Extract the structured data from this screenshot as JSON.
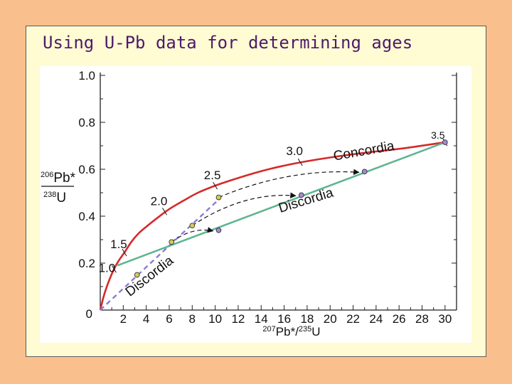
{
  "slide": {
    "title": "Using U-Pb data for determining ages"
  },
  "colors": {
    "background": "#f9c08e",
    "frame": "#fffbd3",
    "title": "#4d1a6b",
    "concordia": "#d42a2a",
    "discordia": "#5fb590",
    "discordia_young": "#8c7bd6",
    "point_yellow": "#d6cc55",
    "point_purple": "#a28ad6"
  },
  "chart_data": {
    "type": "line",
    "xlabel": "207Pb*/235U",
    "ylabel": "206Pb*/238U",
    "xlim": [
      0,
      31
    ],
    "ylim": [
      0,
      1.0
    ],
    "x_ticks": [
      2,
      4,
      6,
      8,
      10,
      12,
      14,
      16,
      18,
      20,
      22,
      24,
      26,
      28,
      30
    ],
    "y_ticks": [
      0.2,
      0.4,
      0.6,
      0.8,
      1.0
    ],
    "y_tick_labels": [
      "0.2",
      "0.4",
      "0.6",
      "0.8",
      "1.0"
    ],
    "origin_label": "0",
    "series": [
      {
        "name": "Concordia",
        "style": "solid",
        "color": "#d42a2a",
        "x": [
          0,
          0.25,
          0.5,
          0.8,
          1.2,
          1.6,
          2.1,
          2.7,
          3.3,
          4.0,
          4.9,
          6.0,
          7.2,
          8.5,
          10.0,
          11.5,
          13.5,
          15.5,
          17.5,
          20.0,
          23.0,
          26.5,
          30.0
        ],
        "y": [
          0,
          0.05,
          0.09,
          0.13,
          0.175,
          0.21,
          0.245,
          0.29,
          0.325,
          0.355,
          0.39,
          0.43,
          0.465,
          0.5,
          0.53,
          0.555,
          0.585,
          0.61,
          0.63,
          0.65,
          0.67,
          0.69,
          0.715
        ]
      },
      {
        "name": "Discordia",
        "style": "solid",
        "color": "#5fb590",
        "x": [
          1.5,
          30.0
        ],
        "y": [
          0.19,
          0.715
        ]
      },
      {
        "name": "Discordia",
        "style": "dashed",
        "color": "#8c7bd6",
        "x": [
          0,
          10.5
        ],
        "y": [
          0,
          0.48
        ]
      }
    ],
    "age_labels": [
      {
        "text": "1.0",
        "x": 1.2,
        "y": 0.175
      },
      {
        "text": "1.5",
        "x": 2.1,
        "y": 0.245
      },
      {
        "text": "2.0",
        "x": 5.6,
        "y": 0.42
      },
      {
        "text": "2.5",
        "x": 10.0,
        "y": 0.53
      },
      {
        "text": "3.0",
        "x": 17.4,
        "y": 0.63
      },
      {
        "text": "3.5",
        "x": 30.0,
        "y": 0.715
      }
    ],
    "curve_labels": [
      {
        "text": "Concordia",
        "x": 23,
        "y": 0.66,
        "angle": -10
      },
      {
        "text": "Discordia",
        "x": 18,
        "y": 0.45,
        "angle": -17
      },
      {
        "text": "Discordia",
        "x": 4.5,
        "y": 0.13,
        "angle": -38
      }
    ],
    "points": [
      {
        "x": 3.2,
        "y": 0.15,
        "color": "#d6cc55"
      },
      {
        "x": 6.2,
        "y": 0.29,
        "color": "#d6cc55"
      },
      {
        "x": 8.0,
        "y": 0.36,
        "color": "#d6cc55"
      },
      {
        "x": 10.3,
        "y": 0.48,
        "color": "#d6cc55"
      },
      {
        "x": 10.3,
        "y": 0.34,
        "color": "#a28ad6"
      },
      {
        "x": 17.5,
        "y": 0.49,
        "color": "#a28ad6"
      },
      {
        "x": 23.0,
        "y": 0.59,
        "color": "#a28ad6"
      },
      {
        "x": 30.0,
        "y": 0.715,
        "color": "#a28ad6"
      }
    ],
    "arrows": [
      {
        "from": [
          10.3,
          0.48
        ],
        "to": [
          23.0,
          0.59
        ]
      },
      {
        "from": [
          8.0,
          0.36
        ],
        "to": [
          17.5,
          0.49
        ]
      },
      {
        "from": [
          6.2,
          0.29
        ],
        "to": [
          10.3,
          0.34
        ]
      }
    ],
    "grid": false
  }
}
